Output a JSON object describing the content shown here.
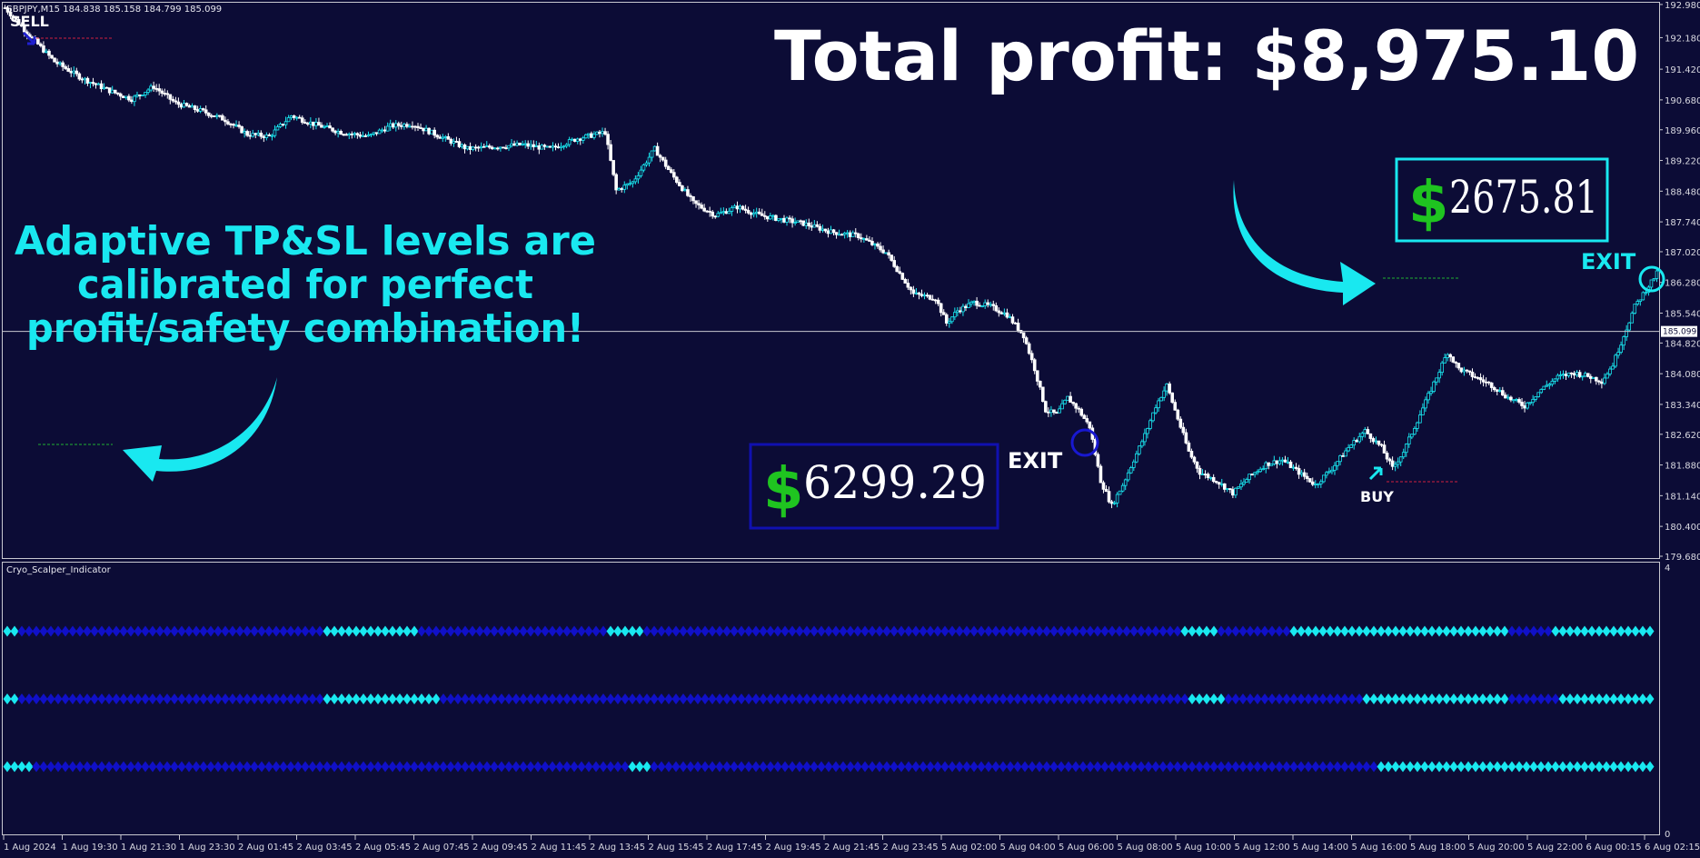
{
  "chart_data": [
    {
      "type": "candlestick",
      "symbol_header": "GBPJPY,M15  184.838 185.158 184.799 185.099",
      "headline": "Total profit: $8,975.10",
      "callout_lines": [
        "Adaptive TP&SL levels are",
        "calibrated for perfect",
        "profit/safety combination!"
      ],
      "ylim": [
        179.68,
        193.0
      ],
      "y_ticks": [
        "192.980",
        "192.180",
        "191.420",
        "190.680",
        "189.960",
        "189.220",
        "188.480",
        "187.740",
        "187.020",
        "186.280",
        "185.540",
        "184.820",
        "184.080",
        "183.340",
        "182.620",
        "181.880",
        "181.140",
        "180.400",
        "179.680"
      ],
      "current_price_label": "185.099",
      "current_price": 185.099,
      "x_ticks": [
        "1 Aug 2024",
        "1 Aug 19:30",
        "1 Aug 21:30",
        "1 Aug 23:30",
        "2 Aug 01:45",
        "2 Aug 03:45",
        "2 Aug 05:45",
        "2 Aug 07:45",
        "2 Aug 09:45",
        "2 Aug 11:45",
        "2 Aug 13:45",
        "2 Aug 15:45",
        "2 Aug 17:45",
        "2 Aug 19:45",
        "2 Aug 21:45",
        "2 Aug 23:45",
        "5 Aug 02:00",
        "5 Aug 04:00",
        "5 Aug 06:00",
        "5 Aug 08:00",
        "5 Aug 10:00",
        "5 Aug 12:00",
        "5 Aug 14:00",
        "5 Aug 16:00",
        "5 Aug 18:00",
        "5 Aug 20:00",
        "5 Aug 22:00",
        "6 Aug 00:15",
        "6 Aug 02:15"
      ],
      "close_path": [
        [
          0,
          192.9
        ],
        [
          8,
          192.3
        ],
        [
          18,
          191.6
        ],
        [
          28,
          191.2
        ],
        [
          38,
          190.9
        ],
        [
          46,
          190.7
        ],
        [
          54,
          191.0
        ],
        [
          62,
          190.6
        ],
        [
          72,
          190.4
        ],
        [
          80,
          190.2
        ],
        [
          88,
          189.85
        ],
        [
          96,
          189.8
        ],
        [
          104,
          190.3
        ],
        [
          112,
          190.1
        ],
        [
          122,
          189.9
        ],
        [
          132,
          189.8
        ],
        [
          140,
          190.05
        ],
        [
          148,
          190.1
        ],
        [
          158,
          189.8
        ],
        [
          168,
          189.5
        ],
        [
          178,
          189.55
        ],
        [
          188,
          189.6
        ],
        [
          198,
          189.5
        ],
        [
          208,
          189.75
        ],
        [
          218,
          189.9
        ],
        [
          222,
          188.5
        ],
        [
          228,
          188.7
        ],
        [
          236,
          189.5
        ],
        [
          242,
          188.9
        ],
        [
          250,
          188.2
        ],
        [
          258,
          187.9
        ],
        [
          266,
          188.1
        ],
        [
          274,
          187.9
        ],
        [
          282,
          187.8
        ],
        [
          290,
          187.7
        ],
        [
          300,
          187.5
        ],
        [
          310,
          187.4
        ],
        [
          320,
          187.0
        ],
        [
          330,
          186.0
        ],
        [
          338,
          185.9
        ],
        [
          342,
          185.3
        ],
        [
          346,
          185.6
        ],
        [
          352,
          185.8
        ],
        [
          358,
          185.7
        ],
        [
          364,
          185.5
        ],
        [
          370,
          185.0
        ],
        [
          374,
          184.2
        ],
        [
          378,
          183.2
        ],
        [
          382,
          183.1
        ],
        [
          386,
          183.5
        ],
        [
          390,
          183.2
        ],
        [
          394,
          182.8
        ],
        [
          398,
          181.5
        ],
        [
          402,
          180.9
        ],
        [
          406,
          181.4
        ],
        [
          410,
          182.0
        ],
        [
          414,
          182.6
        ],
        [
          418,
          183.3
        ],
        [
          422,
          183.8
        ],
        [
          426,
          183.0
        ],
        [
          430,
          182.2
        ],
        [
          434,
          181.7
        ],
        [
          440,
          181.5
        ],
        [
          446,
          181.2
        ],
        [
          452,
          181.6
        ],
        [
          458,
          181.9
        ],
        [
          464,
          182.0
        ],
        [
          470,
          181.7
        ],
        [
          476,
          181.4
        ],
        [
          482,
          181.8
        ],
        [
          488,
          182.3
        ],
        [
          494,
          182.7
        ],
        [
          500,
          182.3
        ],
        [
          504,
          181.8
        ],
        [
          508,
          182.2
        ],
        [
          512,
          182.8
        ],
        [
          516,
          183.4
        ],
        [
          520,
          184.0
        ],
        [
          524,
          184.6
        ],
        [
          528,
          184.2
        ],
        [
          534,
          184.0
        ],
        [
          540,
          183.8
        ],
        [
          546,
          183.5
        ],
        [
          552,
          183.3
        ],
        [
          558,
          183.7
        ],
        [
          564,
          184.0
        ],
        [
          570,
          184.1
        ],
        [
          576,
          184.0
        ],
        [
          580,
          183.9
        ],
        [
          584,
          184.3
        ],
        [
          588,
          185.0
        ],
        [
          592,
          185.7
        ],
        [
          596,
          186.1
        ],
        [
          600,
          186.5
        ]
      ],
      "annotations": {
        "sell_label": "SELL",
        "buy_label": "BUY",
        "exit_label": "EXIT",
        "exit_label_2": "EXIT",
        "profit_1": "6299.29",
        "profit_2": "2675.81",
        "dollar_sign": "$"
      },
      "colors": {
        "background": "#0c0c36",
        "bull": "#ffffff",
        "bear": "#ffffff",
        "accent": "#19e8f0",
        "dark_blue": "#1010b0"
      }
    },
    {
      "type": "indicator",
      "indicator_name": "Cryo_Scalper_Indicator",
      "ylim": [
        0,
        4
      ],
      "y_ticks": [
        "4",
        "0"
      ],
      "rows": [
        {
          "level": 3,
          "cyan_segments": [
            [
              0.0,
              0.005
            ],
            [
              0.19,
              0.25
            ],
            [
              0.365,
              0.385
            ],
            [
              0.713,
              0.735
            ],
            [
              0.778,
              0.91
            ],
            [
              0.937,
              1.0
            ]
          ]
        },
        {
          "level": 2,
          "cyan_segments": [
            [
              0.0,
              0.006
            ],
            [
              0.19,
              0.263
            ],
            [
              0.718,
              0.738
            ],
            [
              0.823,
              0.91
            ],
            [
              0.942,
              1.0
            ]
          ]
        },
        {
          "level": 1,
          "cyan_segments": [
            [
              0.0,
              0.016
            ],
            [
              0.378,
              0.388
            ],
            [
              0.832,
              1.0
            ]
          ]
        }
      ]
    }
  ]
}
